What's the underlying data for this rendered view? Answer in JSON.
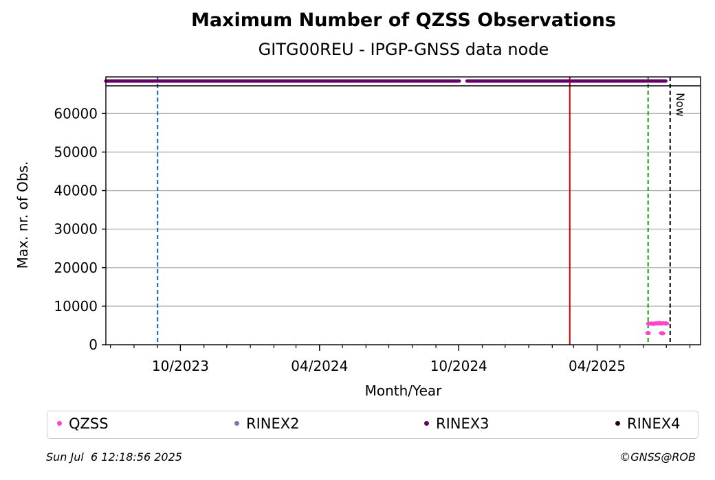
{
  "chart_data": {
    "type": "scatter",
    "title": "Maximum Number of QZSS Observations",
    "subtitle": "GITG00REU - IPGP-GNSS data node",
    "xlabel": "Month/Year",
    "ylabel": "Max. nr. of Obs.",
    "ylim": [
      0,
      69500
    ],
    "xlim": [
      "2023-06-25",
      "2025-08-15"
    ],
    "yticks": [
      0,
      10000,
      20000,
      30000,
      40000,
      50000,
      60000
    ],
    "ytick_labels": [
      "0",
      "10000",
      "20000",
      "30000",
      "40000",
      "50000",
      "60000"
    ],
    "xticks": [
      "2023-10-01",
      "2024-04-01",
      "2024-10-01",
      "2025-04-01"
    ],
    "xtick_labels": [
      "10/2023",
      "04/2024",
      "10/2024",
      "04/2025"
    ],
    "grid": "horizontal",
    "legend_placement": "bottom",
    "series": [
      {
        "name": "QZSS",
        "color": "#ff44cc",
        "points": [
          {
            "x": "2025-06-07",
            "y": 3000
          },
          {
            "x": "2025-06-08",
            "y": 5500
          },
          {
            "x": "2025-06-10",
            "y": 5450
          },
          {
            "x": "2025-06-12",
            "y": 5500
          },
          {
            "x": "2025-06-14",
            "y": 5400
          },
          {
            "x": "2025-06-16",
            "y": 5500
          },
          {
            "x": "2025-06-18",
            "y": 5600
          },
          {
            "x": "2025-06-20",
            "y": 5500
          },
          {
            "x": "2025-06-22",
            "y": 5650
          },
          {
            "x": "2025-06-24",
            "y": 5500
          },
          {
            "x": "2025-06-25",
            "y": 3000
          },
          {
            "x": "2025-06-26",
            "y": 2950
          },
          {
            "x": "2025-06-27",
            "y": 5600
          },
          {
            "x": "2025-06-29",
            "y": 5550
          },
          {
            "x": "2025-07-01",
            "y": 5500
          }
        ]
      },
      {
        "name": "RINEX2",
        "color": "#7777bb",
        "points": []
      },
      {
        "name": "RINEX3",
        "color": "#660066",
        "band": [
          {
            "from": "2023-06-25",
            "to": "2024-10-02"
          },
          {
            "from": "2024-10-12",
            "to": "2025-07-01"
          }
        ]
      },
      {
        "name": "RINEX4",
        "color": "#220022",
        "points": []
      }
    ],
    "vlines": [
      {
        "x": "2023-09-01",
        "color": "#1166bb",
        "style": "dashed"
      },
      {
        "x": "2025-02-24",
        "color": "#cc0000",
        "style": "solid"
      },
      {
        "x": "2025-06-07",
        "color": "#119911",
        "style": "dashed"
      },
      {
        "x": "2025-07-06",
        "color": "#000000",
        "style": "dashed",
        "label": "Now"
      }
    ]
  },
  "footer": {
    "timestamp": "Sun Jul  6 12:18:56 2025",
    "credit": "©GNSS@ROB"
  }
}
